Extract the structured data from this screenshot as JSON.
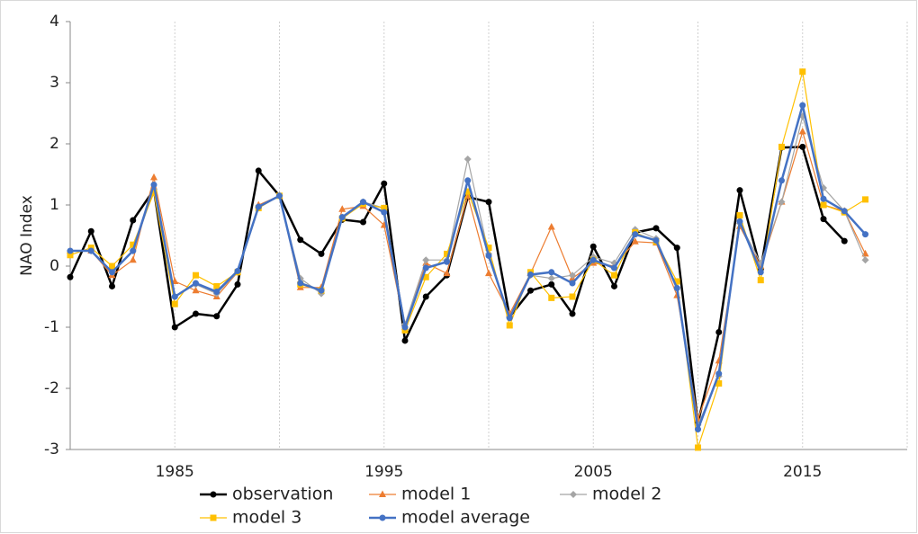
{
  "chart_data": {
    "type": "line",
    "y_label": "NAO Index",
    "x": [
      1980,
      1981,
      1982,
      1983,
      1984,
      1985,
      1986,
      1987,
      1988,
      1989,
      1990,
      1991,
      1992,
      1993,
      1994,
      1995,
      1996,
      1997,
      1998,
      1999,
      2000,
      2001,
      2002,
      2003,
      2004,
      2005,
      2006,
      2007,
      2008,
      2009,
      2010,
      2011,
      2012,
      2013,
      2014,
      2015,
      2016,
      2017,
      2018
    ],
    "xlim": [
      1980,
      2020
    ],
    "xticks": [
      1985,
      1995,
      2005,
      2015
    ],
    "xgrid": [
      1990,
      2000,
      2010,
      2020
    ],
    "ylim": [
      -3,
      4
    ],
    "yticks": [
      -3,
      -2,
      -1,
      0,
      1,
      2,
      3,
      4
    ],
    "grid": "x",
    "legend": "bottom",
    "series": [
      {
        "name": "observation",
        "color": "#000000",
        "marker": "circle",
        "width": 2.5,
        "values": [
          -0.18,
          0.57,
          -0.33,
          0.75,
          1.25,
          -1.0,
          -0.78,
          -0.82,
          -0.3,
          1.56,
          1.15,
          0.43,
          0.2,
          0.76,
          0.72,
          1.35,
          -1.22,
          -0.5,
          -0.15,
          1.13,
          1.05,
          -0.83,
          -0.4,
          -0.3,
          -0.78,
          0.32,
          -0.33,
          0.55,
          0.62,
          0.3,
          -2.57,
          -1.08,
          1.24,
          -0.05,
          1.94,
          1.95,
          0.77,
          0.41,
          null
        ]
      },
      {
        "name": "model 1",
        "color": "#ed7d31",
        "marker": "triangle",
        "width": 1.2,
        "values": [
          0.25,
          0.25,
          -0.15,
          0.1,
          1.45,
          -0.25,
          -0.4,
          -0.5,
          -0.1,
          1.0,
          1.15,
          -0.35,
          -0.35,
          0.93,
          0.98,
          0.67,
          -1.0,
          0.05,
          -0.12,
          1.15,
          -0.12,
          -0.78,
          -0.12,
          0.64,
          -0.2,
          0.05,
          0.0,
          0.4,
          0.38,
          -0.48,
          -2.5,
          -1.55,
          0.65,
          0.0,
          1.05,
          2.2,
          1.0,
          0.9,
          0.2
        ]
      },
      {
        "name": "model 2",
        "color": "#a5a5a5",
        "marker": "diamond",
        "width": 1.2,
        "values": [
          0.25,
          0.25,
          -0.1,
          0.25,
          1.25,
          -0.5,
          -0.3,
          -0.45,
          -0.1,
          0.95,
          1.15,
          -0.2,
          -0.45,
          0.8,
          1.05,
          0.95,
          -0.95,
          0.1,
          0.1,
          1.75,
          0.2,
          -0.85,
          -0.15,
          -0.2,
          -0.15,
          0.15,
          0.05,
          0.6,
          0.45,
          -0.35,
          -2.6,
          -1.8,
          0.7,
          0.05,
          1.05,
          2.45,
          1.28,
          0.9,
          0.1
        ]
      },
      {
        "name": "model 3",
        "color": "#ffc000",
        "marker": "square",
        "width": 1.2,
        "values": [
          0.18,
          0.3,
          0.0,
          0.35,
          1.2,
          -0.62,
          -0.15,
          -0.33,
          -0.1,
          0.95,
          1.15,
          -0.3,
          -0.4,
          0.78,
          1.02,
          0.95,
          -1.05,
          -0.18,
          0.2,
          1.22,
          0.3,
          -0.97,
          -0.1,
          -0.52,
          -0.5,
          0.1,
          -0.15,
          0.55,
          0.4,
          -0.25,
          -2.97,
          -1.92,
          0.83,
          -0.23,
          1.95,
          3.18,
          1.0,
          0.88,
          1.09
        ]
      },
      {
        "name": "model average",
        "color": "#4472c4",
        "marker": "circle",
        "width": 2.5,
        "values": [
          0.25,
          0.25,
          -0.1,
          0.25,
          1.33,
          -0.5,
          -0.28,
          -0.42,
          -0.08,
          0.97,
          1.15,
          -0.28,
          -0.4,
          0.8,
          1.05,
          0.88,
          -1.0,
          -0.03,
          0.07,
          1.4,
          0.17,
          -0.85,
          -0.14,
          -0.1,
          -0.28,
          0.1,
          -0.03,
          0.52,
          0.42,
          -0.36,
          -2.67,
          -1.76,
          0.73,
          -0.1,
          1.4,
          2.63,
          1.1,
          0.9,
          0.52
        ]
      }
    ]
  }
}
